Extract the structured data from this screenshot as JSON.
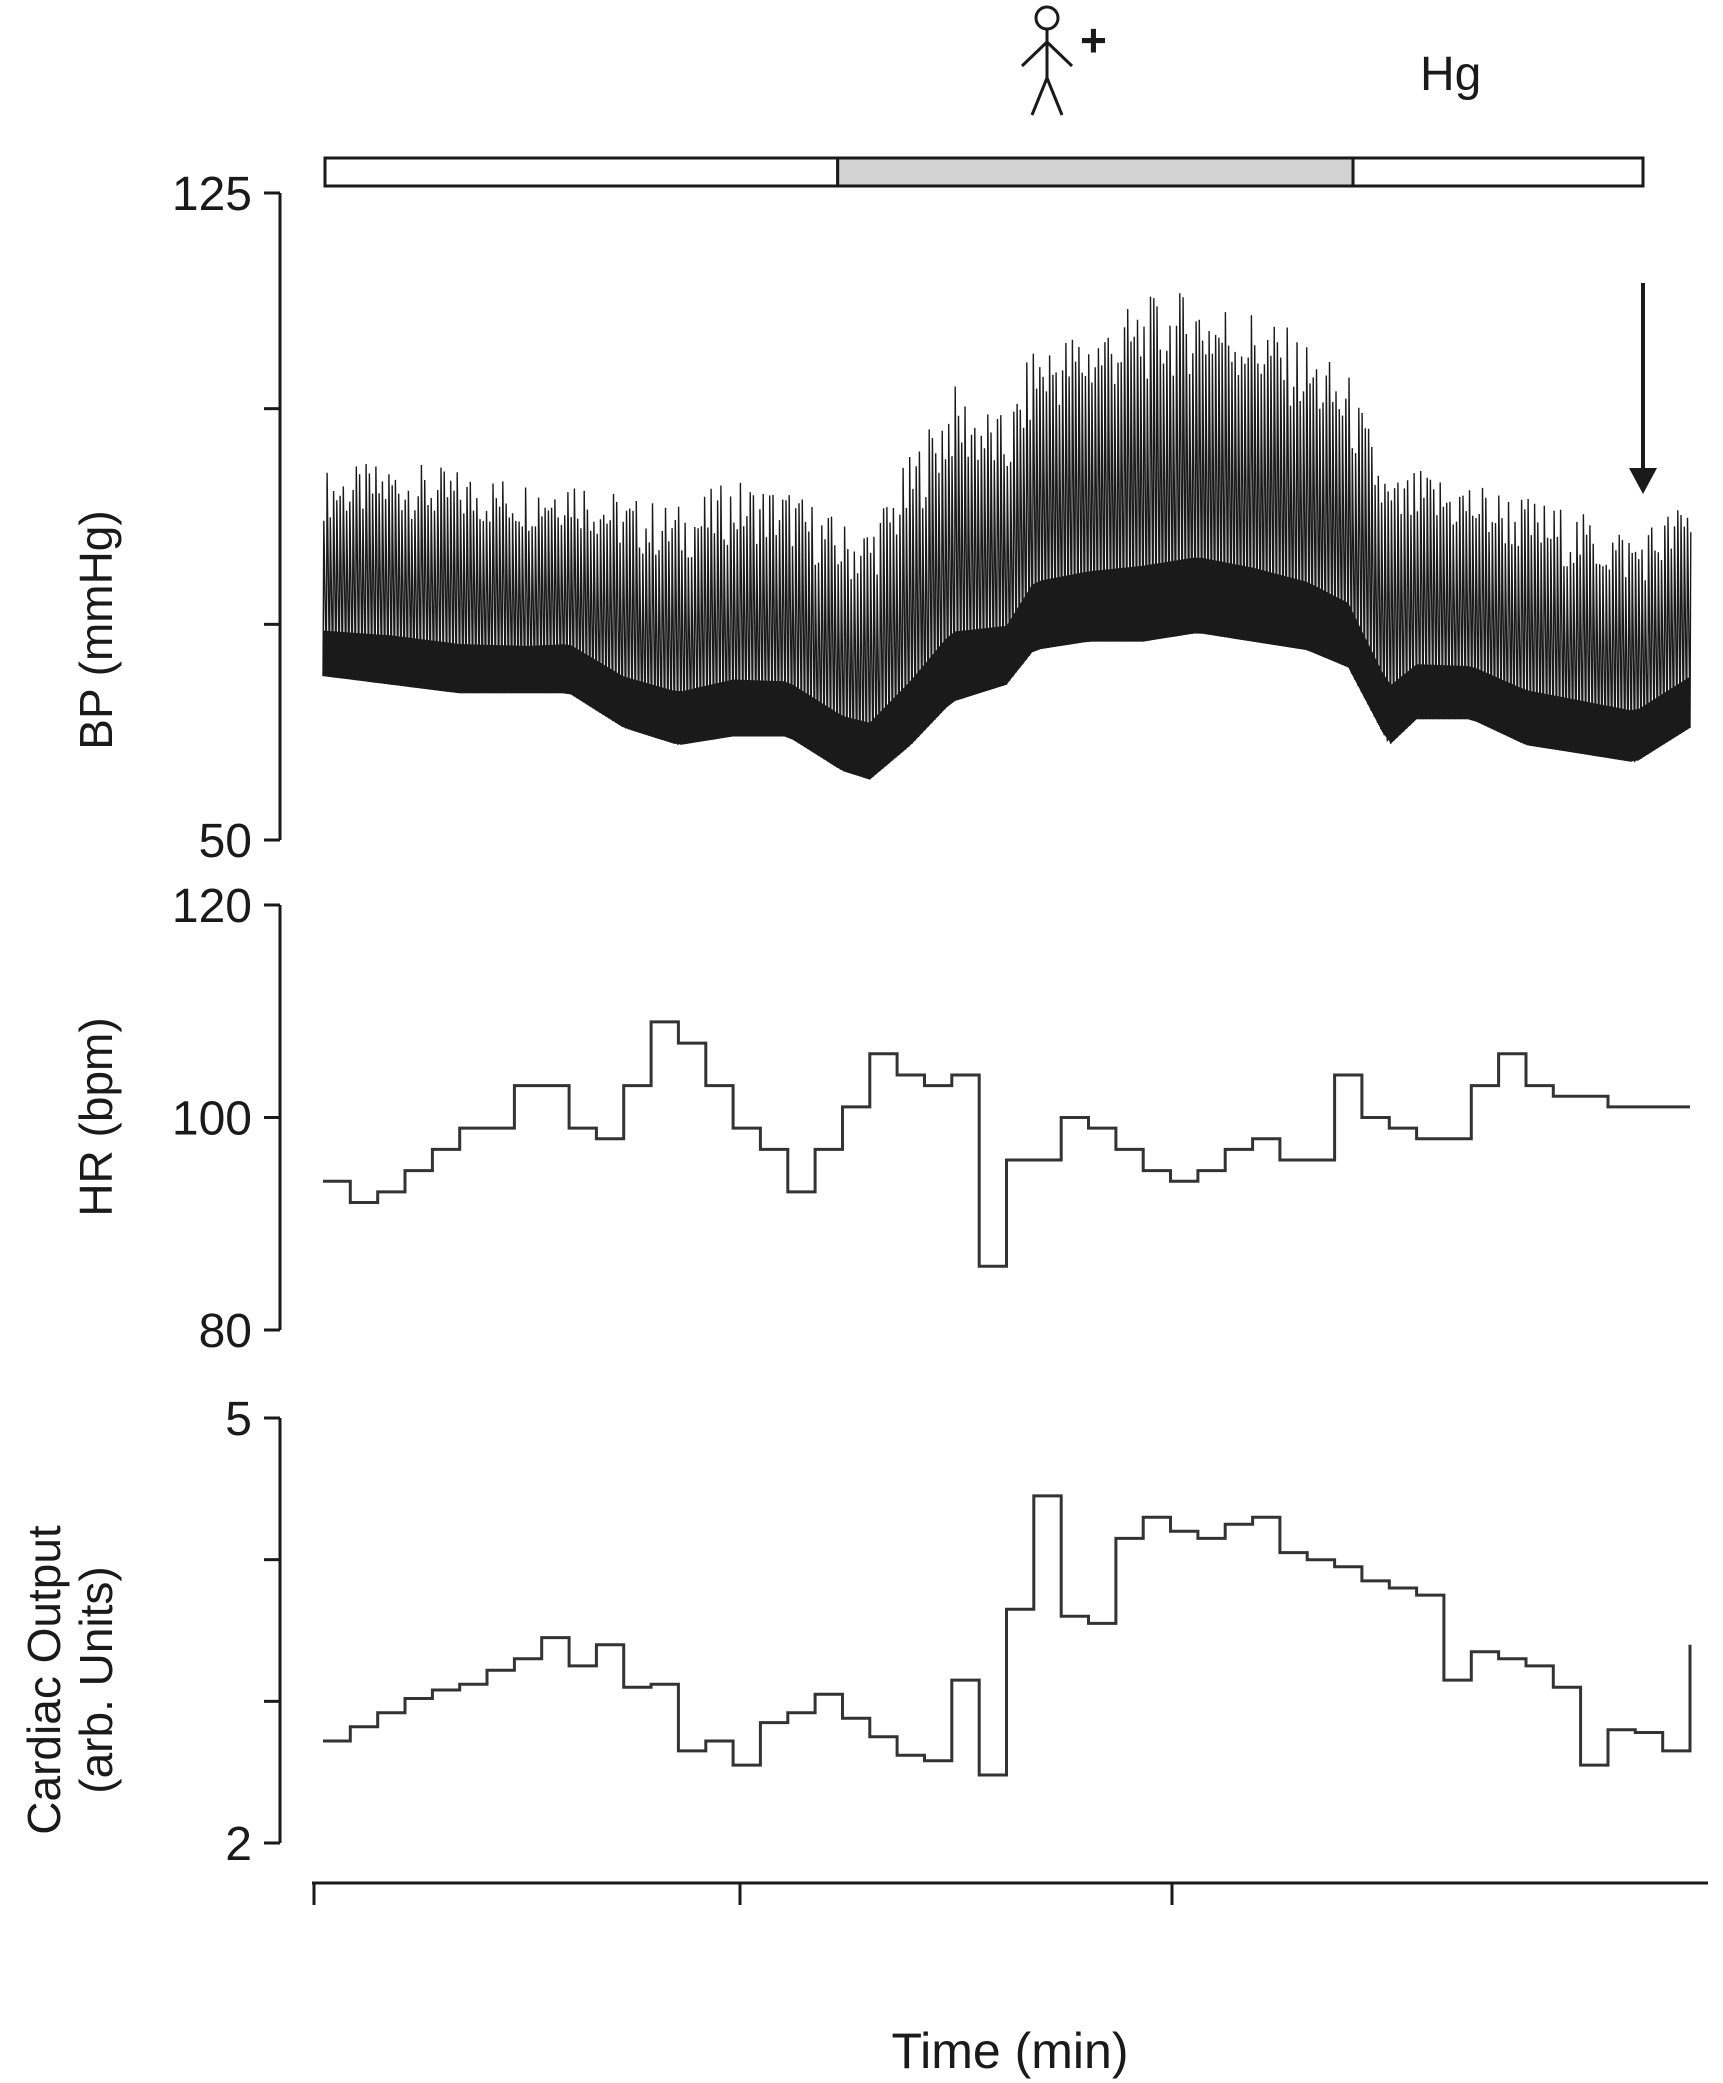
{
  "figure": {
    "marker_plus": "+",
    "marker_label": "Hg",
    "condition_bar": {
      "segments": [
        {
          "start": 0,
          "end": 0.389,
          "shade": "#ffffff"
        },
        {
          "start": 0.389,
          "end": 0.78,
          "shade": "#d3d3d3"
        },
        {
          "start": 0.78,
          "end": 1.0,
          "shade": "#ffffff"
        }
      ]
    },
    "arrow_position": 0.965,
    "x_axis_label": "Time (min)"
  },
  "chart_data": [
    {
      "type": "line",
      "ylabel": "BP (mmHg)",
      "ylim": [
        50,
        125
      ],
      "yticks": [
        50,
        75,
        100,
        125
      ],
      "ytick_labels": [
        "50",
        "",
        "",
        "125"
      ],
      "x": [
        0,
        0.05,
        0.1,
        0.15,
        0.18,
        0.22,
        0.26,
        0.3,
        0.34,
        0.38,
        0.4,
        0.43,
        0.46,
        0.5,
        0.52,
        0.56,
        0.6,
        0.64,
        0.68,
        0.72,
        0.75,
        0.78,
        0.8,
        0.84,
        0.88,
        0.92,
        0.96,
        1.0
      ],
      "series": [
        {
          "values_upper": [
            93,
            94,
            93,
            92,
            93,
            90,
            89,
            92,
            91,
            87,
            87,
            95,
            103,
            99,
            108,
            110,
            113,
            114,
            112,
            108,
            104,
            92,
            93,
            92,
            90,
            88,
            86,
            90
          ],
          "values_lower": [
            69,
            68,
            67,
            67,
            67,
            63,
            61,
            62,
            62,
            58,
            57,
            61,
            66,
            68,
            72,
            73,
            73,
            74,
            73,
            72,
            70,
            61,
            64,
            64,
            61,
            60,
            59,
            63
          ]
        }
      ]
    },
    {
      "type": "line",
      "ylabel": "HR (bpm)",
      "ylim": [
        80,
        120
      ],
      "yticks": [
        80,
        100,
        120
      ],
      "ytick_labels": [
        "80",
        "100",
        "120"
      ],
      "x": [
        0.0,
        0.02,
        0.04,
        0.06,
        0.08,
        0.1,
        0.12,
        0.14,
        0.16,
        0.18,
        0.2,
        0.22,
        0.24,
        0.26,
        0.28,
        0.3,
        0.32,
        0.34,
        0.36,
        0.38,
        0.4,
        0.42,
        0.44,
        0.46,
        0.48,
        0.5,
        0.52,
        0.525,
        0.54,
        0.56,
        0.58,
        0.6,
        0.62,
        0.64,
        0.66,
        0.68,
        0.7,
        0.72,
        0.74,
        0.76,
        0.78,
        0.8,
        0.82,
        0.84,
        0.86,
        0.88,
        0.9,
        0.92,
        0.94,
        0.96,
        0.98,
        1.0
      ],
      "series": [
        {
          "name": "",
          "values": [
            94,
            92,
            93,
            95,
            97,
            99,
            99,
            103,
            103,
            99,
            98,
            103,
            109,
            107,
            103,
            99,
            97,
            93,
            97,
            101,
            106,
            104,
            103,
            104,
            86,
            96,
            96,
            96,
            100,
            99,
            97,
            95,
            94,
            95,
            97,
            98,
            96,
            96,
            104,
            100,
            99,
            98,
            98,
            103,
            106,
            103,
            102,
            102,
            101,
            101,
            101,
            101
          ]
        }
      ]
    },
    {
      "type": "line",
      "ylabel": "Cardiac Output\n(arb. Units)",
      "ylim": [
        2,
        5
      ],
      "yticks": [
        2,
        3,
        4,
        5
      ],
      "ytick_labels": [
        "2",
        "",
        "",
        "5"
      ],
      "x": [
        0.0,
        0.02,
        0.04,
        0.06,
        0.08,
        0.1,
        0.12,
        0.14,
        0.16,
        0.18,
        0.2,
        0.22,
        0.24,
        0.26,
        0.28,
        0.3,
        0.32,
        0.34,
        0.36,
        0.38,
        0.4,
        0.42,
        0.44,
        0.46,
        0.48,
        0.5,
        0.52,
        0.54,
        0.56,
        0.58,
        0.6,
        0.62,
        0.64,
        0.66,
        0.68,
        0.7,
        0.72,
        0.74,
        0.76,
        0.78,
        0.8,
        0.82,
        0.84,
        0.86,
        0.88,
        0.9,
        0.92,
        0.94,
        0.96,
        0.98,
        1.0
      ],
      "series": [
        {
          "name": "",
          "values": [
            2.72,
            2.82,
            2.92,
            3.02,
            3.08,
            3.12,
            3.22,
            3.3,
            3.45,
            3.25,
            3.4,
            3.1,
            3.12,
            2.65,
            2.72,
            2.55,
            2.85,
            2.92,
            3.05,
            2.88,
            2.75,
            2.62,
            2.58,
            3.15,
            2.48,
            3.65,
            4.45,
            3.6,
            3.55,
            4.15,
            4.3,
            4.2,
            4.15,
            4.25,
            4.3,
            4.05,
            4.0,
            3.95,
            3.85,
            3.8,
            3.75,
            3.15,
            3.35,
            3.3,
            3.25,
            3.1,
            2.55,
            2.8,
            2.78,
            2.65,
            3.4
          ]
        }
      ]
    }
  ]
}
